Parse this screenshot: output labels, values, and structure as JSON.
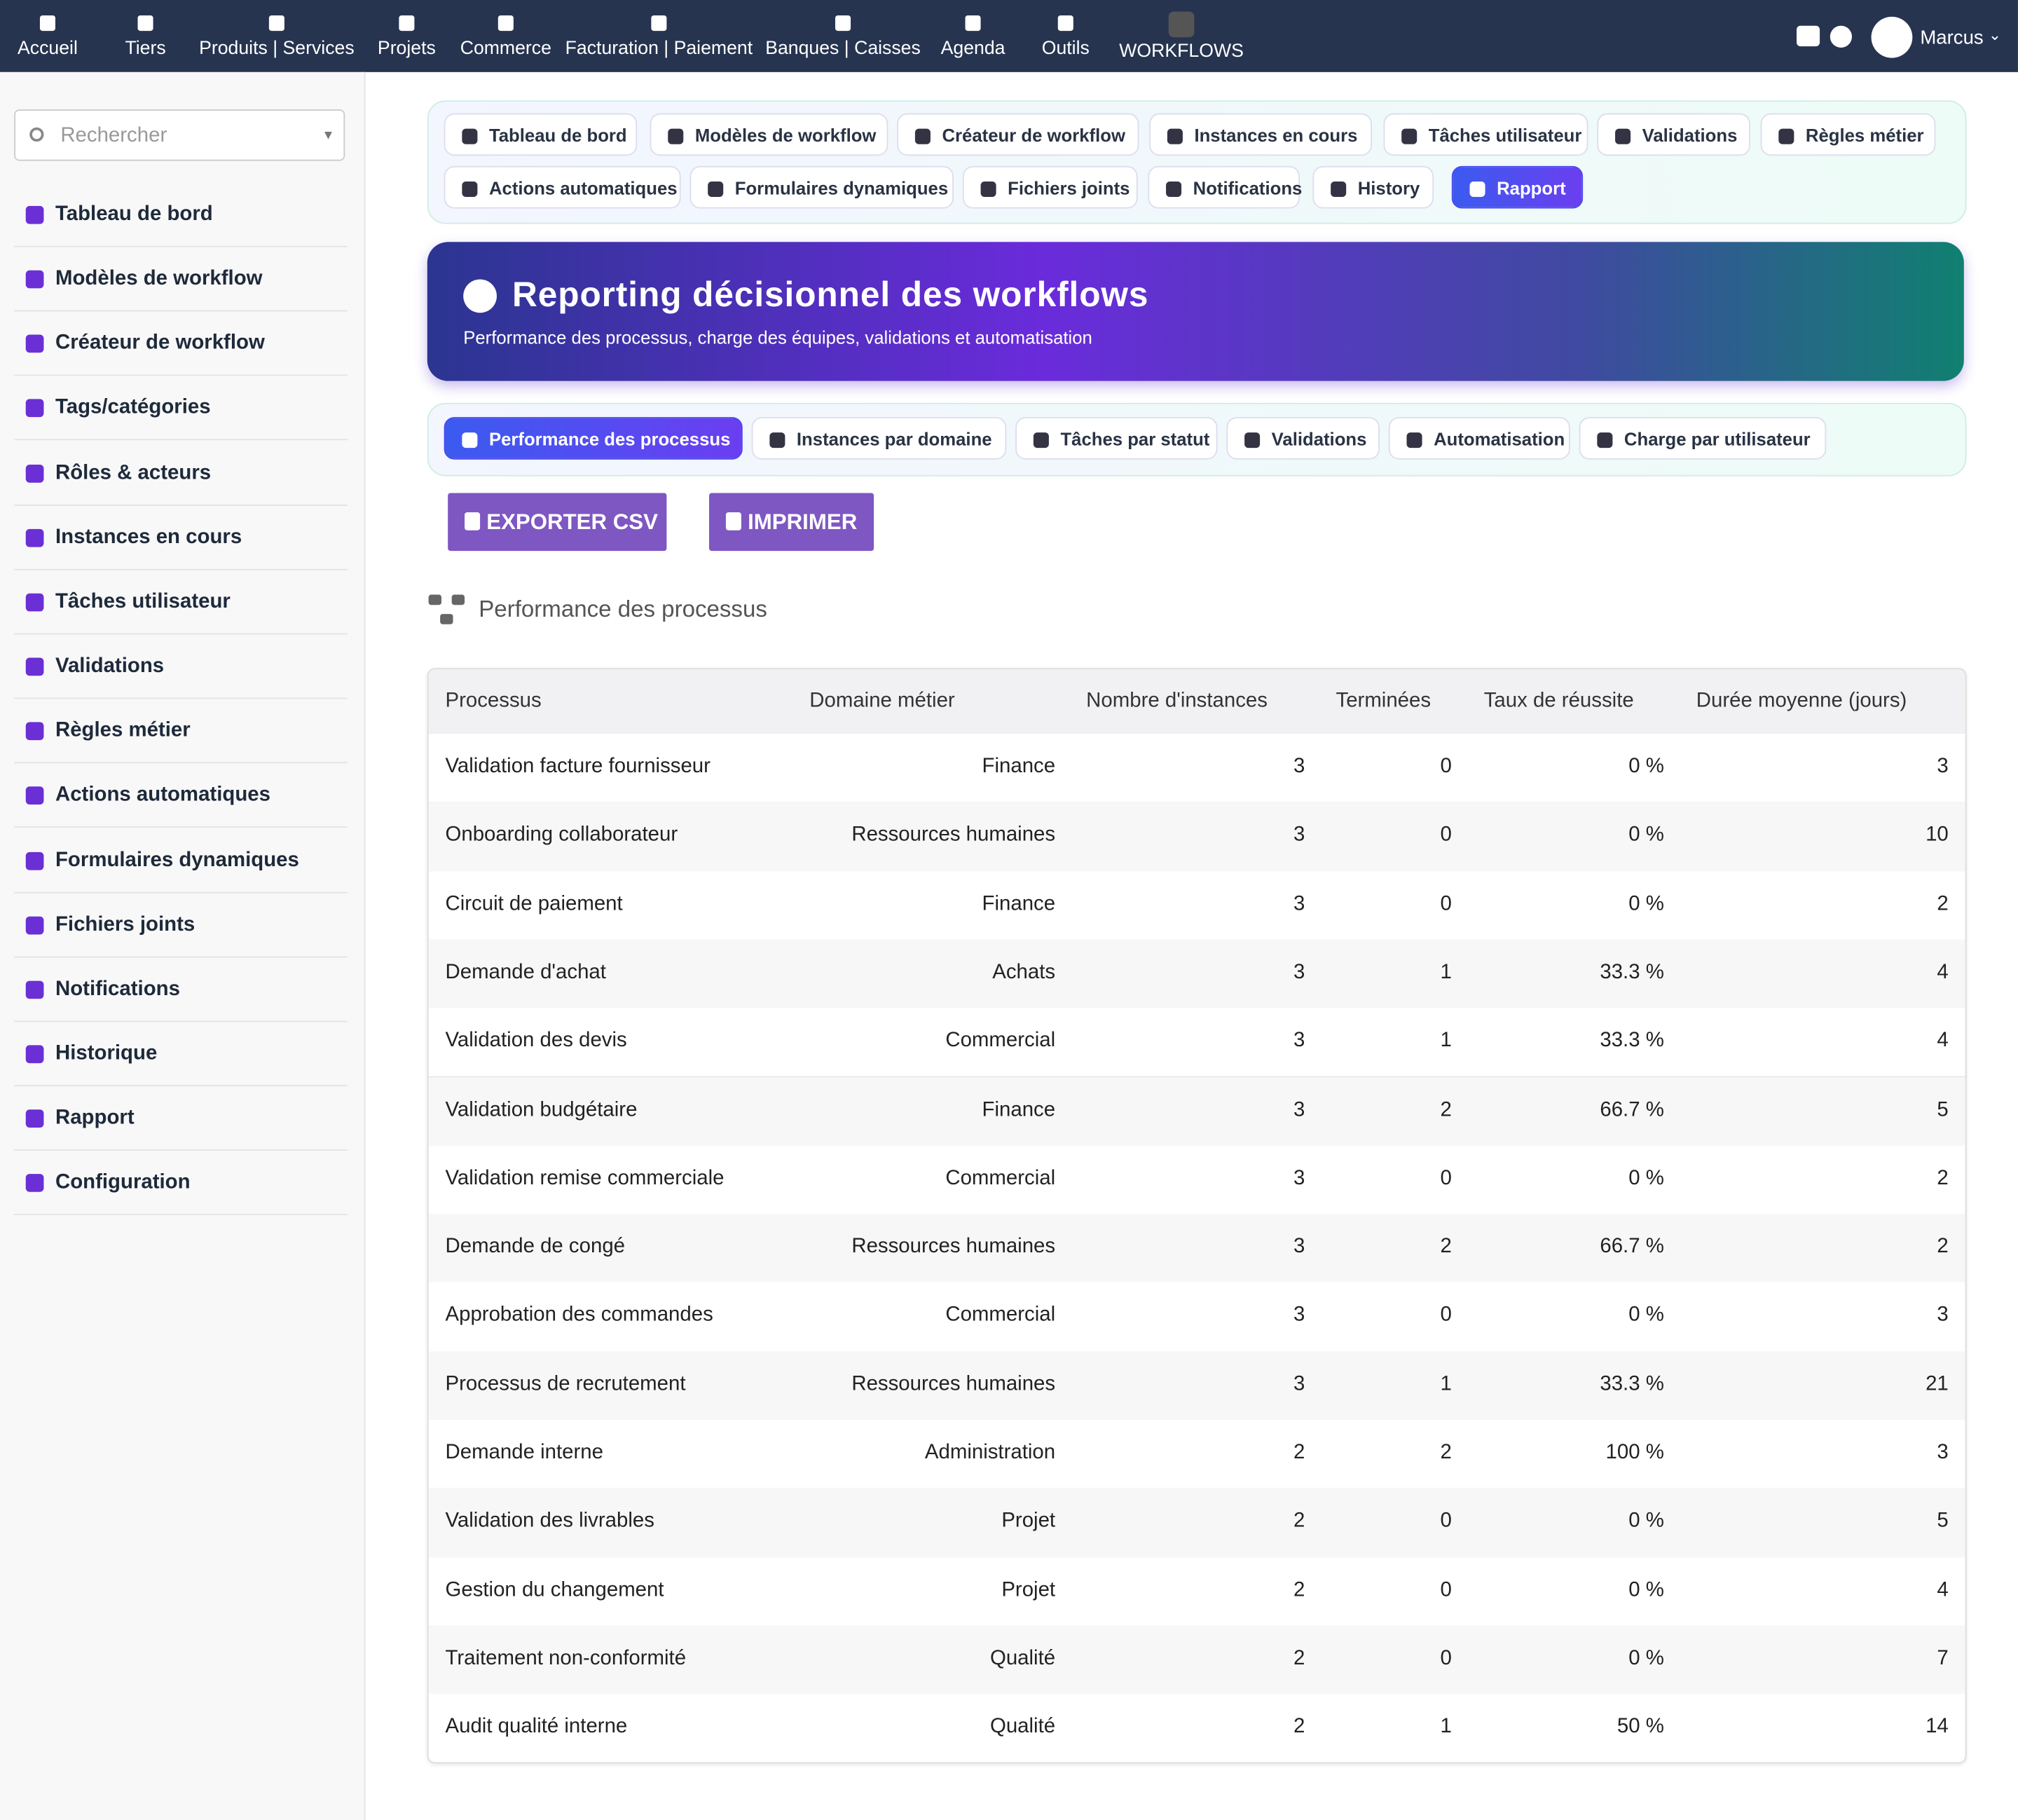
{
  "topnav": {
    "items": [
      "Accueil",
      "Tiers",
      "Produits | Services",
      "Projets",
      "Commerce",
      "Facturation | Paiement",
      "Banques | Caisses",
      "Agenda",
      "Outils",
      "WORKFLOWS"
    ],
    "user": "Marcus"
  },
  "sidebar": {
    "search_placeholder": "Rechercher",
    "items": [
      "Tableau de bord",
      "Modèles de workflow",
      "Créateur de workflow",
      "Tags/catégories",
      "Rôles & acteurs",
      "Instances en cours",
      "Tâches utilisateur",
      "Validations",
      "Règles métier",
      "Actions automatiques",
      "Formulaires dynamiques",
      "Fichiers joints",
      "Notifications",
      "Historique",
      "Rapport",
      "Configuration"
    ]
  },
  "tabs": {
    "row1": [
      "Tableau de bord",
      "Modèles de workflow",
      "Créateur de workflow",
      "Instances en cours",
      "Tâches utilisateur",
      "Validations",
      "Règles métier"
    ],
    "row2": [
      "Actions automatiques",
      "Formulaires dynamiques",
      "Fichiers joints",
      "Notifications",
      "History",
      "Rapport"
    ]
  },
  "banner": {
    "title": "Reporting décisionnel des workflows",
    "subtitle": "Performance des processus, charge des équipes, validations et automatisation"
  },
  "subtabs": [
    "Performance des processus",
    "Instances par domaine",
    "Tâches par statut",
    "Validations",
    "Automatisation",
    "Charge par utilisateur"
  ],
  "buttons": [
    "EXPORTER CSV",
    "IMPRIMER"
  ],
  "section_title": "Performance des processus",
  "table": {
    "headers": [
      "Processus",
      "Domaine métier",
      "Nombre d'instances",
      "Terminées",
      "Taux de réussite",
      "Durée moyenne (jours)"
    ],
    "rows": [
      [
        "Validation facture fournisseur",
        "Finance",
        "3",
        "0",
        "0 %",
        "3"
      ],
      [
        "Onboarding collaborateur",
        "Ressources humaines",
        "3",
        "0",
        "0 %",
        "10"
      ],
      [
        "Circuit de paiement",
        "Finance",
        "3",
        "0",
        "0 %",
        "2"
      ],
      [
        "Demande d'achat",
        "Achats",
        "3",
        "1",
        "33.3 %",
        "4"
      ],
      [
        "Validation des devis",
        "Commercial",
        "3",
        "1",
        "33.3 %",
        "4"
      ],
      [
        "Validation budgétaire",
        "Finance",
        "3",
        "2",
        "66.7 %",
        "5"
      ],
      [
        "Validation remise commerciale",
        "Commercial",
        "3",
        "0",
        "0 %",
        "2"
      ],
      [
        "Demande de congé",
        "Ressources humaines",
        "3",
        "2",
        "66.7 %",
        "2"
      ],
      [
        "Approbation des commandes",
        "Commercial",
        "3",
        "0",
        "0 %",
        "3"
      ],
      [
        "Processus de recrutement",
        "Ressources humaines",
        "3",
        "1",
        "33.3 %",
        "21"
      ],
      [
        "Demande interne",
        "Administration",
        "2",
        "2",
        "100 %",
        "3"
      ],
      [
        "Validation des livrables",
        "Projet",
        "2",
        "0",
        "0 %",
        "5"
      ],
      [
        "Gestion du changement",
        "Projet",
        "2",
        "0",
        "0 %",
        "4"
      ],
      [
        "Traitement non-conformité",
        "Qualité",
        "2",
        "0",
        "0 %",
        "7"
      ],
      [
        "Audit qualité interne",
        "Qualité",
        "2",
        "1",
        "50 %",
        "14"
      ]
    ]
  }
}
